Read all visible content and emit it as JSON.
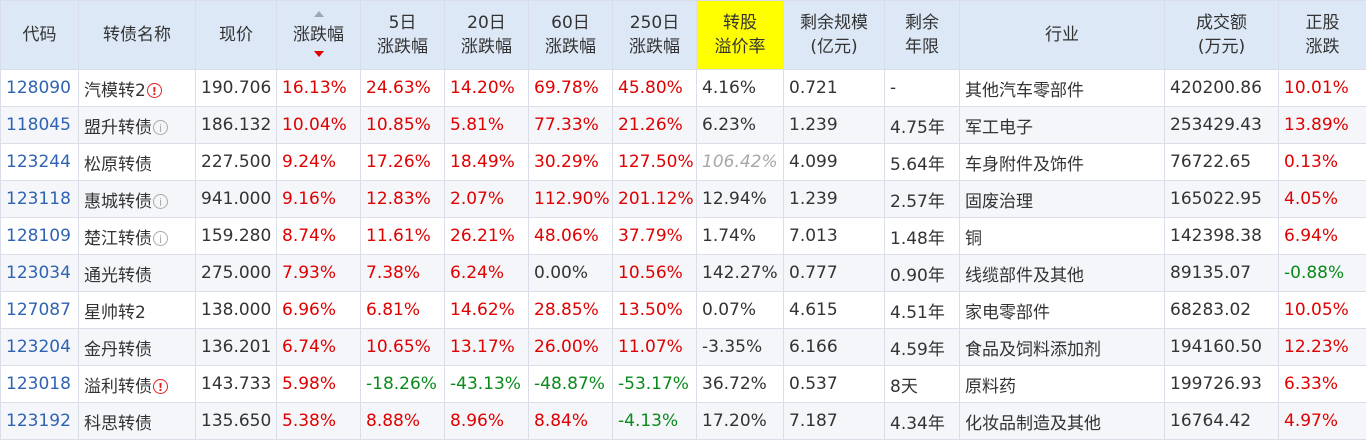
{
  "headers": {
    "code": "代码",
    "name": "转债名称",
    "price": "现价",
    "change": "涨跌幅",
    "d5": [
      "5日",
      "涨跌幅"
    ],
    "d20": [
      "20日",
      "涨跌幅"
    ],
    "d60": [
      "60日",
      "涨跌幅"
    ],
    "d250": [
      "250日",
      "涨跌幅"
    ],
    "premium": [
      "转股",
      "溢价率"
    ],
    "scale": [
      "剩余规模",
      "(亿元)"
    ],
    "years": [
      "剩余",
      "年限"
    ],
    "industry": "行业",
    "volume": [
      "成交额",
      "(万元)"
    ],
    "stock_change": [
      "正股",
      "涨跌"
    ]
  },
  "sort": {
    "column": "涨跌幅",
    "direction": "desc"
  },
  "rows": [
    {
      "code": "128090",
      "name": "汽模转2",
      "icon": "warning-icon",
      "price": "190.706",
      "change": "16.13%",
      "d5": "24.63%",
      "d20": "14.20%",
      "d60": "69.78%",
      "d250": "45.80%",
      "premium": "4.16%",
      "scale": "0.721",
      "years": "-",
      "industry": "其他汽车零部件",
      "volume": "420200.86",
      "stock_change": "10.01%"
    },
    {
      "code": "118045",
      "name": "盟升转债",
      "icon": "info-icon",
      "price": "186.132",
      "change": "10.04%",
      "d5": "10.85%",
      "d20": "5.81%",
      "d60": "77.33%",
      "d250": "21.26%",
      "premium": "6.23%",
      "scale": "1.239",
      "years": "4.75年",
      "industry": "军工电子",
      "volume": "253429.43",
      "stock_change": "13.89%"
    },
    {
      "code": "123244",
      "name": "松原转债",
      "icon": "",
      "price": "227.500",
      "change": "9.24%",
      "d5": "17.26%",
      "d20": "18.49%",
      "d60": "30.29%",
      "d250": "127.50%",
      "premium": "106.42%",
      "scale": "4.099",
      "years": "5.64年",
      "industry": "车身附件及饰件",
      "volume": "76722.65",
      "stock_change": "0.13%"
    },
    {
      "code": "123118",
      "name": "惠城转债",
      "icon": "info-icon",
      "price": "941.000",
      "change": "9.16%",
      "d5": "12.83%",
      "d20": "2.07%",
      "d60": "112.90%",
      "d250": "201.12%",
      "premium": "12.94%",
      "scale": "1.239",
      "years": "2.57年",
      "industry": "固废治理",
      "volume": "165022.95",
      "stock_change": "4.05%"
    },
    {
      "code": "128109",
      "name": "楚江转债",
      "icon": "info-icon",
      "price": "159.280",
      "change": "8.74%",
      "d5": "11.61%",
      "d20": "26.21%",
      "d60": "48.06%",
      "d250": "37.79%",
      "premium": "1.74%",
      "scale": "7.013",
      "years": "1.48年",
      "industry": "铜",
      "volume": "142398.38",
      "stock_change": "6.94%"
    },
    {
      "code": "123034",
      "name": "通光转债",
      "icon": "",
      "price": "275.000",
      "change": "7.93%",
      "d5": "7.38%",
      "d20": "6.24%",
      "d60": "0.00%",
      "d250": "10.56%",
      "premium": "142.27%",
      "scale": "0.777",
      "years": "0.90年",
      "industry": "线缆部件及其他",
      "volume": "89135.07",
      "stock_change": "-0.88%"
    },
    {
      "code": "127087",
      "name": "星帅转2",
      "icon": "",
      "price": "138.000",
      "change": "6.96%",
      "d5": "6.81%",
      "d20": "14.62%",
      "d60": "28.85%",
      "d250": "13.50%",
      "premium": "0.07%",
      "scale": "4.615",
      "years": "4.51年",
      "industry": "家电零部件",
      "volume": "68283.02",
      "stock_change": "10.05%"
    },
    {
      "code": "123204",
      "name": "金丹转债",
      "icon": "",
      "price": "136.201",
      "change": "6.74%",
      "d5": "10.65%",
      "d20": "13.17%",
      "d60": "26.00%",
      "d250": "11.07%",
      "premium": "-3.35%",
      "scale": "6.166",
      "years": "4.59年",
      "industry": "食品及饲料添加剂",
      "volume": "194160.50",
      "stock_change": "12.23%"
    },
    {
      "code": "123018",
      "name": "溢利转债",
      "icon": "warning-icon",
      "price": "143.733",
      "change": "5.98%",
      "d5": "-18.26%",
      "d20": "-43.13%",
      "d60": "-48.87%",
      "d250": "-53.17%",
      "premium": "36.72%",
      "scale": "0.537",
      "years": "8天",
      "industry": "原料药",
      "volume": "199726.93",
      "stock_change": "6.33%"
    },
    {
      "code": "123192",
      "name": "科思转债",
      "icon": "",
      "price": "135.650",
      "change": "5.38%",
      "d5": "8.88%",
      "d20": "8.96%",
      "d60": "8.84%",
      "d250": "-4.13%",
      "premium": "17.20%",
      "scale": "7.187",
      "years": "4.34年",
      "industry": "化妆品制造及其他",
      "volume": "16764.42",
      "stock_change": "4.97%"
    }
  ],
  "colors": {
    "up": "#e00000",
    "down": "#0a8a1a",
    "code": "#2f63b3",
    "header_bg": "#dce8f6",
    "highlight": "#ffff00"
  }
}
